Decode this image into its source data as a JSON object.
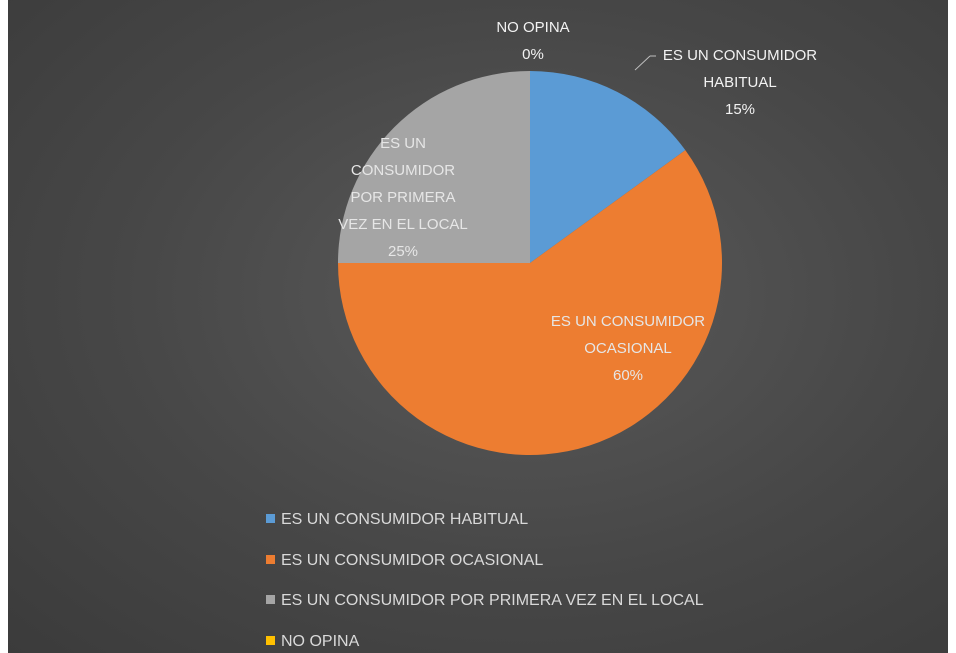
{
  "chart_data": {
    "type": "pie",
    "categories": [
      "ES UN CONSUMIDOR HABITUAL",
      "ES UN CONSUMIDOR OCASIONAL",
      "ES UN CONSUMIDOR POR PRIMERA VEZ EN EL LOCAL",
      "NO OPINA"
    ],
    "values": [
      15,
      60,
      25,
      0
    ],
    "value_labels": [
      "15%",
      "60%",
      "25%",
      "0%"
    ],
    "colors": [
      "#5b9bd5",
      "#ed7d31",
      "#a5a5a5",
      "#ffc000"
    ],
    "legend": "bottom"
  }
}
